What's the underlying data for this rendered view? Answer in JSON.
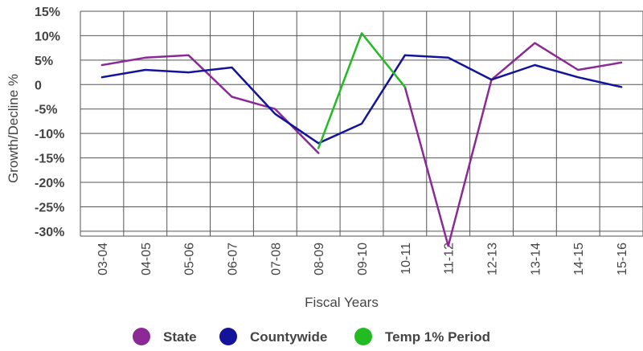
{
  "chart_data": {
    "type": "line",
    "xlabel": "Fiscal Years",
    "ylabel": "Growth/Decline %",
    "categories": [
      "03-04",
      "04-05",
      "05-06",
      "06-07",
      "07-08",
      "08-09",
      "09-10",
      "10-11",
      "11-12",
      "12-13",
      "13-14",
      "14-15",
      "15-16"
    ],
    "y_ticks": [
      "15%",
      "10%",
      "5%",
      "0",
      "-5%",
      "-10%",
      "-15%",
      "-20%",
      "-25%",
      "-30%"
    ],
    "y_tick_values": [
      15,
      10,
      5,
      0,
      -5,
      -10,
      -15,
      -20,
      -25,
      -30
    ],
    "ylim": [
      -31,
      15
    ],
    "grid": true,
    "legend_position": "bottom",
    "series": [
      {
        "name": "State",
        "color": "#8b2a96",
        "values": [
          4,
          5.5,
          6,
          -2.5,
          -5,
          -14,
          null,
          -0.5,
          -33,
          1,
          8.5,
          3,
          4.5
        ]
      },
      {
        "name": "Countywide",
        "color": "#14149a",
        "values": [
          1.5,
          3,
          2.5,
          3.5,
          -6,
          -12,
          -8,
          6,
          5.5,
          1,
          4,
          1.5,
          -0.5
        ]
      },
      {
        "name": "Temp 1% Period",
        "color": "#22bb22",
        "values": [
          null,
          null,
          null,
          null,
          null,
          -13,
          10.5,
          -0.5,
          null,
          null,
          null,
          null,
          null
        ]
      }
    ]
  }
}
